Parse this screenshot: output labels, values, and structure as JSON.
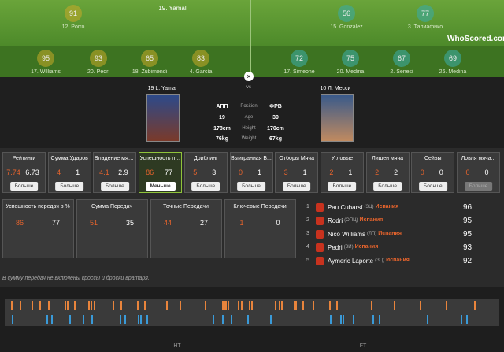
{
  "pitch": {
    "banner": "19. Yamal",
    "logo": "WhoScored.com",
    "players": [
      {
        "rating": "91",
        "name": "12. Porro"
      },
      {
        "rating": "56",
        "name": "15. González"
      },
      {
        "rating": "77",
        "name": "3. Талиафико"
      },
      {
        "rating": "95",
        "name": "17. Williams"
      },
      {
        "rating": "93",
        "name": "20. Pedri"
      },
      {
        "rating": "65",
        "name": "18. Zubimendi"
      },
      {
        "rating": "83",
        "name": "4. García"
      },
      {
        "rating": "72",
        "name": "17. Simeone"
      },
      {
        "rating": "75",
        "name": "20. Medina"
      },
      {
        "rating": "67",
        "name": "2. Senesi"
      },
      {
        "rating": "69",
        "name": "26. Medina"
      }
    ]
  },
  "comparison": {
    "vs": "vs",
    "left": "19 L. Yamal",
    "right": "10 Л. Месси",
    "rows": [
      [
        "АПП",
        "Position",
        "ФРВ"
      ],
      [
        "19",
        "Age",
        "39"
      ],
      [
        "178cm",
        "Height",
        "170cm"
      ],
      [
        "76kg",
        "Weight",
        "67kg"
      ]
    ]
  },
  "stats": [
    {
      "title": "Рейтинги",
      "left": "7.74",
      "right": "6.73",
      "button": "Больше"
    },
    {
      "title": "Сумма Ударов",
      "left": "4",
      "right": "1",
      "button": "Больше"
    },
    {
      "title": "Владение мяча...",
      "left": "4.1",
      "right": "2.9",
      "button": "Больше"
    },
    {
      "title": "Успешность пе...",
      "left": "86",
      "right": "77",
      "button": "Меньше"
    },
    {
      "title": "Дриблинг",
      "left": "5",
      "right": "3",
      "button": "Больше"
    },
    {
      "title": "Выигранная Б...",
      "left": "0",
      "right": "1",
      "button": "Больше"
    },
    {
      "title": "Отборы Мяча",
      "left": "3",
      "right": "1",
      "button": "Больше"
    },
    {
      "title": "Угловые",
      "left": "2",
      "right": "1",
      "button": "Больше"
    },
    {
      "title": "Лишен мяча",
      "left": "2",
      "right": "2",
      "button": "Больше"
    },
    {
      "title": "Сейвы",
      "left": "0",
      "right": "0",
      "button": "Больше"
    },
    {
      "title": "Ловля мяча...",
      "left": "0",
      "right": "0",
      "button": "Больше"
    }
  ],
  "pass_stats": [
    {
      "title": "Успешность передач в %",
      "left": "86",
      "right": "77"
    },
    {
      "title": "Сумма Передач",
      "left": "51",
      "right": "35"
    },
    {
      "title": "Точные Передачи",
      "left": "44",
      "right": "27"
    },
    {
      "title": "Ключевые Передачи",
      "left": "1",
      "right": "0"
    }
  ],
  "ranking": [
    {
      "rank": "1",
      "name": "Pau Cubarsí",
      "position": "(ЗЦ)",
      "team": "Испания",
      "rating": "96"
    },
    {
      "rank": "2",
      "name": "Rodri",
      "position": "(ОПЦ)",
      "team": "Испания",
      "rating": "95"
    },
    {
      "rank": "3",
      "name": "Nico Williams",
      "position": "(ЛП)",
      "team": "Испания",
      "rating": "95"
    },
    {
      "rank": "4",
      "name": "Pedri",
      "position": "(ЗИ)",
      "team": "Испания",
      "rating": "93"
    },
    {
      "rank": "5",
      "name": "Aymeric Laporte",
      "position": "(ЗЦ)",
      "team": "Испания",
      "rating": "92"
    }
  ],
  "note": "В сумму передач не включены кроссы и броски вратаря.",
  "timeline": {
    "labels": [
      "HT",
      "FT"
    ]
  }
}
